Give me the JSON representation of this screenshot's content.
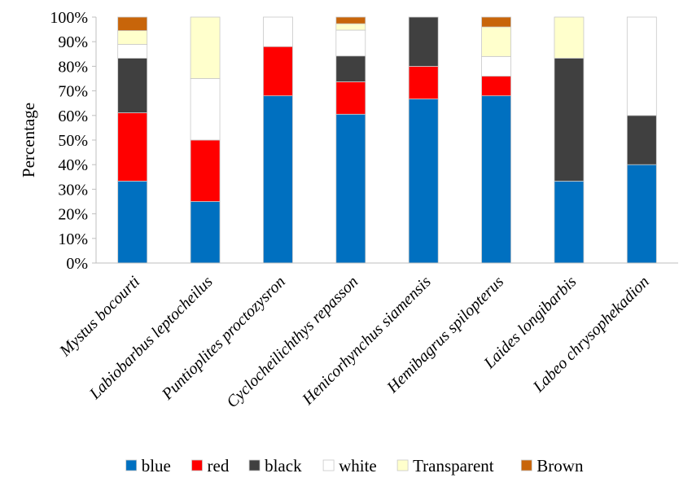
{
  "chart_data": {
    "type": "bar",
    "stacked": true,
    "ylabel": "Percentage",
    "xlabel": "",
    "ylim": [
      0,
      100
    ],
    "y_ticks": [
      "0%",
      "10%",
      "20%",
      "30%",
      "40%",
      "50%",
      "60%",
      "70%",
      "80%",
      "90%",
      "100%"
    ],
    "grid": false,
    "legend_position": "bottom",
    "categories": [
      "Mystus bocourti",
      "Labiobarbus leptocheilus",
      "Puntioplites proctozysron",
      "Cyclocheilichthys repasson",
      "Henicorhynchus siamensis",
      "Hemibagrus spilopterus",
      "Laides longibarbis",
      "Labeo chrysophekadion"
    ],
    "series": [
      {
        "name": "blue",
        "color": "#0070C0",
        "values": [
          33.3,
          25,
          68,
          60.5,
          66.7,
          68,
          33.3,
          40
        ]
      },
      {
        "name": "red",
        "color": "#FF0000",
        "values": [
          27.8,
          25,
          20,
          13.2,
          13.3,
          8,
          0,
          0
        ]
      },
      {
        "name": "black",
        "color": "#404040",
        "values": [
          22.2,
          0,
          0,
          10.5,
          20,
          0,
          50,
          20
        ]
      },
      {
        "name": "white",
        "color": "#FFFFFF",
        "values": [
          5.6,
          25,
          12,
          10.5,
          0,
          8,
          0,
          40
        ]
      },
      {
        "name": "Transparent",
        "color": "#FFFFCC",
        "values": [
          5.6,
          25,
          0,
          2.6,
          0,
          12,
          16.7,
          0
        ]
      },
      {
        "name": "Brown",
        "color": "#C8650A",
        "values": [
          5.5,
          0,
          0,
          2.7,
          0,
          4,
          0,
          0
        ]
      }
    ]
  }
}
